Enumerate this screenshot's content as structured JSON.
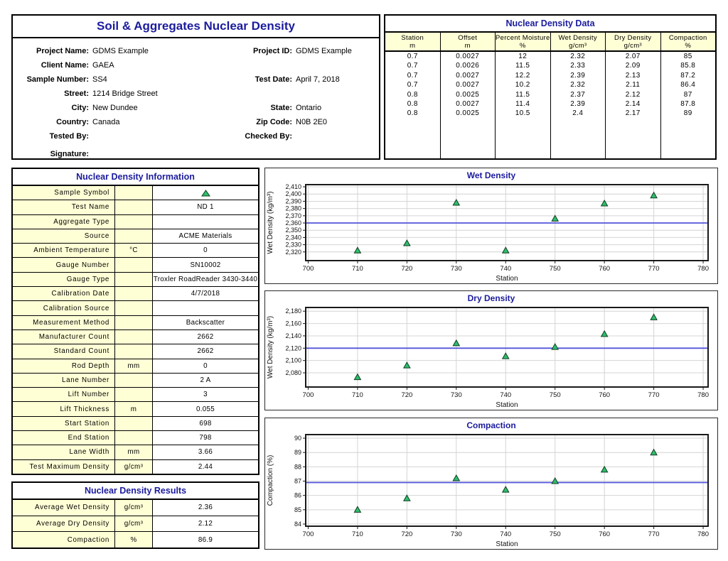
{
  "colors": {
    "title_navy": "#1b1b9e",
    "cell_yellow": "#ffffd6",
    "marker_green": "#2ebe6b",
    "marker_stroke": "#0f3d22",
    "avg_line_blue": "#5353dc",
    "grid_gray": "#d4d4d4",
    "axis_black": "#1a1a1a"
  },
  "report_header": {
    "title": "Soil & Aggregates Nuclear Density",
    "rows": [
      {
        "l1": "Project Name:",
        "v1": "GDMS Example",
        "l2": "Project ID:",
        "v2": "GDMS Example"
      },
      {
        "l1": "Client Name:",
        "v1": "GAEA",
        "l2": "",
        "v2": ""
      },
      {
        "l1": "Sample Number:",
        "v1": "SS4",
        "l2": "Test Date:",
        "v2": "April 7, 2018"
      },
      {
        "l1": "Street:",
        "v1": "1214 Bridge Street",
        "l2": "",
        "v2": ""
      },
      {
        "l1": "City:",
        "v1": "New Dundee",
        "l2": "State:",
        "v2": "Ontario"
      },
      {
        "l1": "Country:",
        "v1": "Canada",
        "l2": "Zip Code:",
        "v2": "N0B 2E0"
      },
      {
        "l1": "Tested By:",
        "v1": "",
        "l2": "Checked By:",
        "v2": ""
      },
      {
        "l1": "Signature:",
        "v1": "",
        "l2": "",
        "v2": ""
      }
    ]
  },
  "nd_data": {
    "title": "Nuclear Density Data",
    "columns": [
      {
        "name": "Station",
        "unit": "m"
      },
      {
        "name": "Offset",
        "unit": "m"
      },
      {
        "name": "Percent Moisture",
        "unit": "%"
      },
      {
        "name": "Wet Density",
        "unit": "g/cm³"
      },
      {
        "name": "Dry Density",
        "unit": "g/cm³"
      },
      {
        "name": "Compaction",
        "unit": "%"
      }
    ],
    "rows": [
      [
        "0.7",
        "0.0027",
        "12",
        "2.32",
        "2.07",
        "85"
      ],
      [
        "0.7",
        "0.0026",
        "11.5",
        "2.33",
        "2.09",
        "85.8"
      ],
      [
        "0.7",
        "0.0027",
        "12.2",
        "2.39",
        "2.13",
        "87.2"
      ],
      [
        "0.7",
        "0.0027",
        "10.2",
        "2.32",
        "2.11",
        "86.4"
      ],
      [
        "0.8",
        "0.0025",
        "11.5",
        "2.37",
        "2.12",
        "87"
      ],
      [
        "0.8",
        "0.0027",
        "11.4",
        "2.39",
        "2.14",
        "87.8"
      ],
      [
        "0.8",
        "0.0025",
        "10.5",
        "2.4",
        "2.17",
        "89"
      ]
    ]
  },
  "nd_info": {
    "title": "Nuclear Density Information",
    "rows": [
      {
        "label": "Sample Symbol",
        "unit": "",
        "value": "",
        "symbol": "triangle"
      },
      {
        "label": "Test Name",
        "unit": "",
        "value": "ND 1"
      },
      {
        "label": "Aggregate Type",
        "unit": "",
        "value": ""
      },
      {
        "label": "Source",
        "unit": "",
        "value": "ACME Materials"
      },
      {
        "label": "Ambient Temperature",
        "unit": "°C",
        "value": "0"
      },
      {
        "label": "Gauge Number",
        "unit": "",
        "value": "SN10002"
      },
      {
        "label": "Gauge Type",
        "unit": "",
        "value": "Troxler RoadReader 3430-3440"
      },
      {
        "label": "Calibration Date",
        "unit": "",
        "value": "4/7/2018"
      },
      {
        "label": "Calibration Source",
        "unit": "",
        "value": ""
      },
      {
        "label": "Measurement Method",
        "unit": "",
        "value": "Backscatter"
      },
      {
        "label": "Manufacturer Count",
        "unit": "",
        "value": "2662"
      },
      {
        "label": "Standard Count",
        "unit": "",
        "value": "2662"
      },
      {
        "label": "Rod Depth",
        "unit": "mm",
        "value": "0"
      },
      {
        "label": "Lane Number",
        "unit": "",
        "value": "2 A"
      },
      {
        "label": "Lift Number",
        "unit": "",
        "value": "3"
      },
      {
        "label": "Lift Thickness",
        "unit": "m",
        "value": "0.055"
      },
      {
        "label": "Start Station",
        "unit": "",
        "value": "698"
      },
      {
        "label": "End Station",
        "unit": "",
        "value": "798"
      },
      {
        "label": "Lane Width",
        "unit": "mm",
        "value": "3.66"
      },
      {
        "label": "Test Maximum Density",
        "unit": "g/cm³",
        "value": "2.44"
      }
    ]
  },
  "nd_results": {
    "title": "Nuclear Density Results",
    "rows": [
      {
        "label": "Average Wet Density",
        "unit": "g/cm³",
        "value": "2.36"
      },
      {
        "label": "Average Dry Density",
        "unit": "g/cm³",
        "value": "2.12"
      },
      {
        "label": "Compaction",
        "unit": "%",
        "value": "86.9"
      }
    ]
  },
  "chart_data": [
    {
      "type": "scatter",
      "name": "wet-density",
      "title": "Wet Density",
      "xlabel": "Station",
      "ylabel": "Wet Density (kg/m³)",
      "x": [
        710,
        720,
        730,
        740,
        750,
        760,
        770
      ],
      "y": [
        2322,
        2332,
        2388,
        2322,
        2366,
        2387,
        2398
      ],
      "avg_line": 2360,
      "x_ticks": [
        700,
        710,
        720,
        730,
        740,
        750,
        760,
        770,
        780
      ],
      "y_ticks": [
        2320,
        2330,
        2340,
        2350,
        2360,
        2370,
        2380,
        2390,
        2400,
        2410
      ],
      "xlim": [
        699.5,
        781
      ],
      "ylim": [
        2308,
        2413
      ],
      "tick_format": "comma",
      "grid": true,
      "marker": "triangle",
      "legend": "none"
    },
    {
      "type": "scatter",
      "name": "dry-density",
      "title": "Dry Density",
      "xlabel": "Station",
      "ylabel": "Wet Density (kg/m³)",
      "x": [
        710,
        720,
        730,
        740,
        750,
        760,
        770
      ],
      "y": [
        2073,
        2092,
        2128,
        2107,
        2122,
        2143,
        2170
      ],
      "avg_line": 2120,
      "x_ticks": [
        700,
        710,
        720,
        730,
        740,
        750,
        760,
        770,
        780
      ],
      "y_ticks": [
        2080,
        2100,
        2120,
        2140,
        2160,
        2180
      ],
      "xlim": [
        699.5,
        781
      ],
      "ylim": [
        2057,
        2186
      ],
      "tick_format": "comma",
      "grid": true,
      "marker": "triangle",
      "legend": "none"
    },
    {
      "type": "scatter",
      "name": "compaction",
      "title": "Compaction",
      "xlabel": "Station",
      "ylabel": "Compaction (%)",
      "x": [
        710,
        720,
        730,
        740,
        750,
        760,
        770
      ],
      "y": [
        85,
        85.8,
        87.2,
        86.4,
        87,
        87.8,
        89
      ],
      "avg_line": 86.9,
      "x_ticks": [
        700,
        710,
        720,
        730,
        740,
        750,
        760,
        770,
        780
      ],
      "y_ticks": [
        84,
        85,
        86,
        87,
        88,
        89,
        90
      ],
      "xlim": [
        699.5,
        781
      ],
      "ylim": [
        83.85,
        90.25
      ],
      "tick_format": "plain",
      "grid": true,
      "marker": "triangle",
      "legend": "none"
    }
  ]
}
